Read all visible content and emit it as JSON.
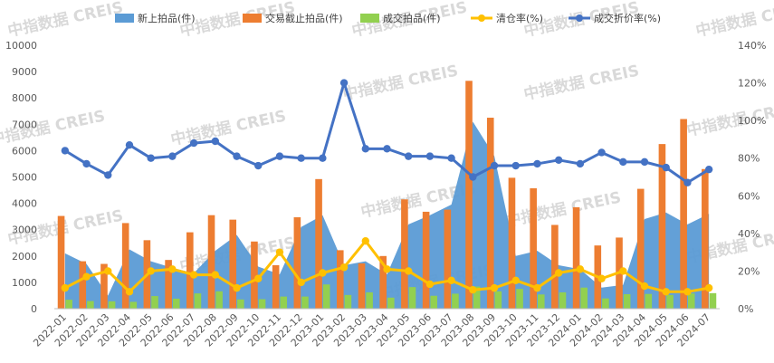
{
  "watermark": "中指数据 CREIS",
  "chart_data": {
    "type": "combo",
    "title": "",
    "legend_position": "top",
    "grid": false,
    "categories": [
      "2022-01",
      "2022-02",
      "2022-03",
      "2022-04",
      "2022-05",
      "2022-06",
      "2022-07",
      "2022-08",
      "2022-09",
      "2022-10",
      "2022-11",
      "2022-12",
      "2023-01",
      "2023-02",
      "2023-03",
      "2023-04",
      "2023-05",
      "2023-06",
      "2023-07",
      "2023-08",
      "2023-09",
      "2023-10",
      "2023-11",
      "2023-12",
      "2024-01",
      "2024-02",
      "2024-03",
      "2024-04",
      "2024-05",
      "2024-06",
      "2024-07"
    ],
    "y_left": {
      "min": 0,
      "max": 10000,
      "step": 1000,
      "ticks": [
        "0",
        "1000",
        "2000",
        "3000",
        "4000",
        "5000",
        "6000",
        "7000",
        "8000",
        "9000",
        "10000"
      ]
    },
    "y_right": {
      "min": 0,
      "max": 140,
      "step": 20,
      "ticks": [
        "0%",
        "20%",
        "40%",
        "60%",
        "80%",
        "100%",
        "120%",
        "140%"
      ]
    },
    "series": [
      {
        "name": "新上拍品(件)",
        "kind": "area",
        "axis": "left",
        "color": "#5b9bd5",
        "values": [
          2100,
          1700,
          500,
          2250,
          1800,
          1550,
          1350,
          2200,
          2800,
          1600,
          1300,
          3100,
          3550,
          1650,
          1800,
          1300,
          3200,
          3550,
          3950,
          7100,
          5800,
          2000,
          2200,
          1650,
          1500,
          800,
          900,
          3400,
          3650,
          3200,
          3600
        ]
      },
      {
        "name": "交易截止拍品(件)",
        "kind": "bar",
        "axis": "left",
        "color": "#ed7d31",
        "values": [
          3520,
          1800,
          1700,
          3250,
          2600,
          1850,
          2900,
          3550,
          3380,
          2550,
          1650,
          3470,
          4920,
          2220,
          1720,
          2000,
          4150,
          3680,
          3760,
          8650,
          7250,
          4970,
          4570,
          3180,
          3850,
          2400,
          2700,
          4550,
          6250,
          7200,
          5300
        ]
      },
      {
        "name": "成交拍品(件)",
        "kind": "bar",
        "axis": "left",
        "color": "#92d050",
        "values": [
          340,
          290,
          280,
          260,
          480,
          380,
          580,
          660,
          350,
          360,
          460,
          460,
          920,
          520,
          620,
          420,
          820,
          490,
          570,
          840,
          660,
          750,
          540,
          620,
          800,
          390,
          550,
          560,
          520,
          580,
          590
        ]
      },
      {
        "name": "清仓率(%)",
        "kind": "line",
        "axis": "right",
        "color": "#ffc000",
        "values": [
          11,
          17,
          20,
          9,
          20,
          21,
          18,
          18,
          11,
          16,
          30,
          14,
          19,
          22,
          36,
          21,
          20,
          13,
          15,
          10,
          11,
          15,
          11,
          19,
          21,
          16,
          20,
          12,
          9,
          9,
          11
        ]
      },
      {
        "name": "成交折价率(%)",
        "kind": "line",
        "axis": "right",
        "color": "#4472c4",
        "values": [
          84,
          77,
          71,
          87,
          80,
          81,
          88,
          89,
          81,
          76,
          81,
          80,
          80,
          120,
          85,
          85,
          81,
          81,
          80,
          70,
          76,
          76,
          77,
          79,
          77,
          83,
          78,
          78,
          75,
          67,
          74
        ]
      }
    ]
  }
}
